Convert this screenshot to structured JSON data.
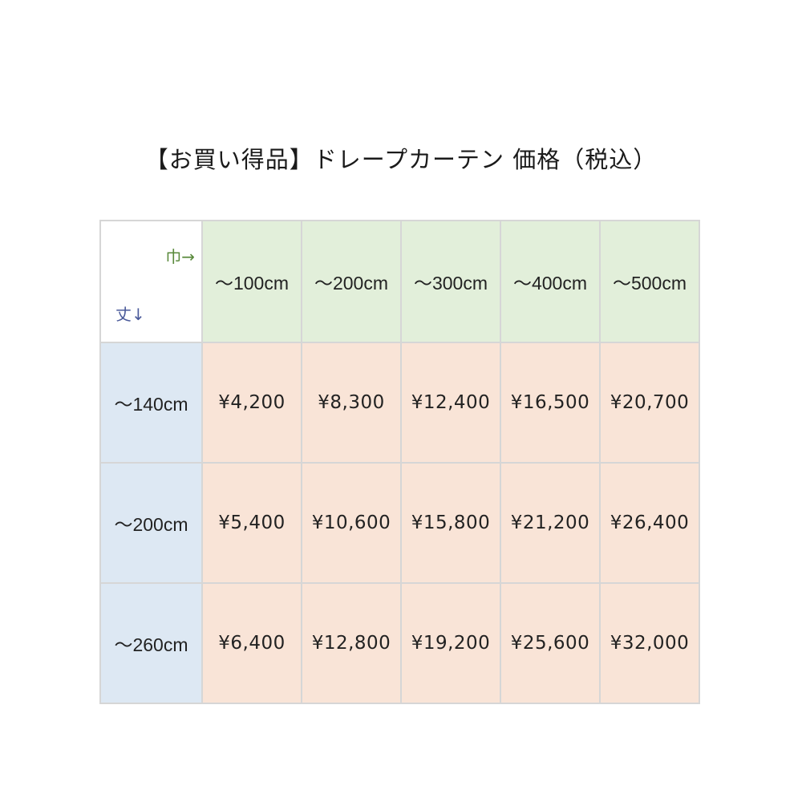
{
  "title": "【お買い得品】ドレープカーテン 価格（税込）",
  "corner": {
    "width_label": "巾→",
    "height_label": "丈↓"
  },
  "columns": [
    "～100cm",
    "～200cm",
    "～300cm",
    "～400cm",
    "～500cm"
  ],
  "rows": [
    {
      "label": "～140cm",
      "prices": [
        "¥4,200",
        "¥8,300",
        "¥12,400",
        "¥16,500",
        "¥20,700"
      ]
    },
    {
      "label": "～200cm",
      "prices": [
        "¥5,400",
        "¥10,600",
        "¥15,800",
        "¥21,200",
        "¥26,400"
      ]
    },
    {
      "label": "～260cm",
      "prices": [
        "¥6,400",
        "¥12,800",
        "¥19,200",
        "¥25,600",
        "¥32,000"
      ]
    }
  ],
  "colors": {
    "header": "#e2efda",
    "row_header": "#dde8f3",
    "price": "#f9e4d7",
    "width_label": "#5a8a3c",
    "height_label": "#4a5a9a"
  }
}
